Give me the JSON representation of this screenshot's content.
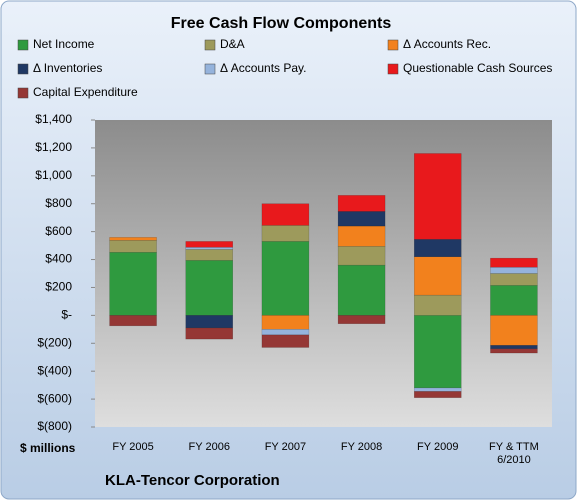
{
  "chart_data": {
    "type": "stacked_bar",
    "title": "Free Cash Flow Components",
    "y_axis_label": "$ millions",
    "footer": "KLA-Tencor Corporation",
    "categories": [
      "FY 2005",
      "FY 2006",
      "FY 2007",
      "FY 2008",
      "FY 2009",
      "FY & TTM 6/2010"
    ],
    "series": [
      {
        "name": "Net Income",
        "color": "#2f9a3f",
        "values": [
          452,
          394,
          530,
          360,
          -520,
          215
        ]
      },
      {
        "name": "D&A",
        "color": "#9d9a5c",
        "values": [
          86,
          79,
          115,
          135,
          145,
          85
        ]
      },
      {
        "name": "Δ Accounts Rec.",
        "color": "#f2811d",
        "values": [
          21,
          0,
          -100,
          145,
          275,
          -215
        ]
      },
      {
        "name": "Δ Inventories",
        "color": "#1f3864",
        "values": [
          0,
          -90,
          0,
          105,
          125,
          -25
        ]
      },
      {
        "name": "Δ Accounts Pay.",
        "color": "#95b3dc",
        "values": [
          0,
          15,
          -40,
          0,
          -25,
          45
        ]
      },
      {
        "name": "Questionable Cash Sources",
        "color": "#e8191c",
        "values": [
          0,
          42,
          155,
          115,
          615,
          65
        ]
      },
      {
        "name": "Capital Expenditure",
        "color": "#953735",
        "values": [
          -75,
          -80,
          -90,
          -60,
          -45,
          -30
        ]
      }
    ],
    "ylim": [
      -800,
      1400
    ],
    "yticks": [
      {
        "value": -800,
        "label": "$(800)"
      },
      {
        "value": -600,
        "label": "$(600)"
      },
      {
        "value": -400,
        "label": "$(400)"
      },
      {
        "value": -200,
        "label": "$(200)"
      },
      {
        "value": 0,
        "label": "$-"
      },
      {
        "value": 200,
        "label": "$200"
      },
      {
        "value": 400,
        "label": "$400"
      },
      {
        "value": 600,
        "label": "$600"
      },
      {
        "value": 800,
        "label": "$800"
      },
      {
        "value": 1000,
        "label": "$1,000"
      },
      {
        "value": 1200,
        "label": "$1,200"
      },
      {
        "value": 1400,
        "label": "$1,400"
      }
    ],
    "grid": false,
    "legend": "top"
  }
}
